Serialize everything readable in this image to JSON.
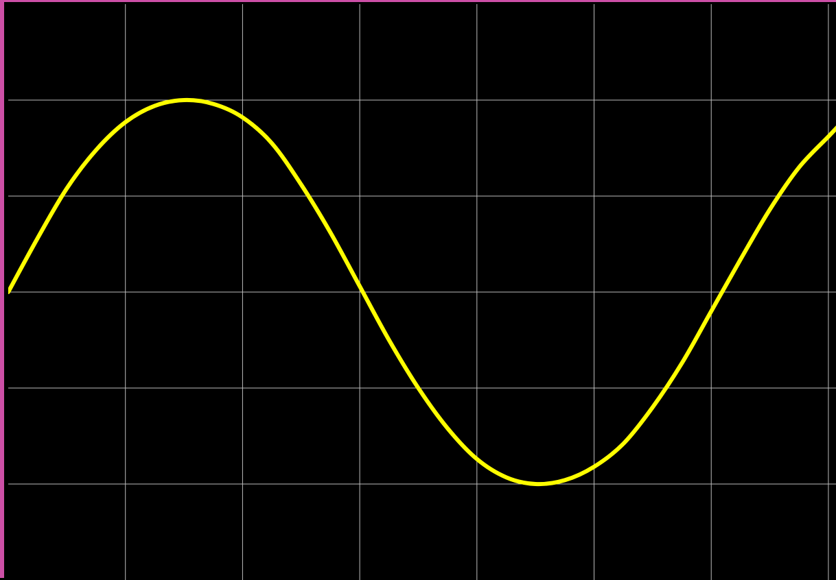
{
  "colors": {
    "background": "#000000",
    "frame_border": "#cc4fa6",
    "grid": "#bdbdbd",
    "trace": "#ffff00"
  },
  "chart_data": {
    "type": "line",
    "title": "",
    "xlabel": "",
    "ylabel": "",
    "grid": true,
    "xlim": [
      0,
      7.1
    ],
    "ylim": [
      -3,
      3
    ],
    "x_gridlines": [
      1,
      2,
      3,
      4,
      5,
      6,
      7
    ],
    "y_gridlines": [
      -2,
      -1,
      0,
      1,
      2
    ],
    "series": [
      {
        "color": "#ffff00",
        "x": [
          0,
          0.25,
          0.5,
          0.75,
          1,
          1.25,
          1.5,
          1.75,
          2,
          2.25,
          2.5,
          2.75,
          3,
          3.25,
          3.5,
          3.75,
          4,
          4.25,
          4.5,
          4.75,
          5,
          5.25,
          5.5,
          5.75,
          6,
          6.25,
          6.5,
          6.75,
          7,
          7.1
        ],
        "y": [
          0,
          0.56,
          1.08,
          1.48,
          1.77,
          1.94,
          2.0,
          1.96,
          1.82,
          1.55,
          1.12,
          0.62,
          0.06,
          -0.5,
          -1.0,
          -1.42,
          -1.74,
          -1.93,
          -2.0,
          -1.96,
          -1.82,
          -1.58,
          -1.2,
          -0.74,
          -0.2,
          0.34,
          0.86,
          1.3,
          1.62,
          1.75
        ]
      }
    ]
  }
}
